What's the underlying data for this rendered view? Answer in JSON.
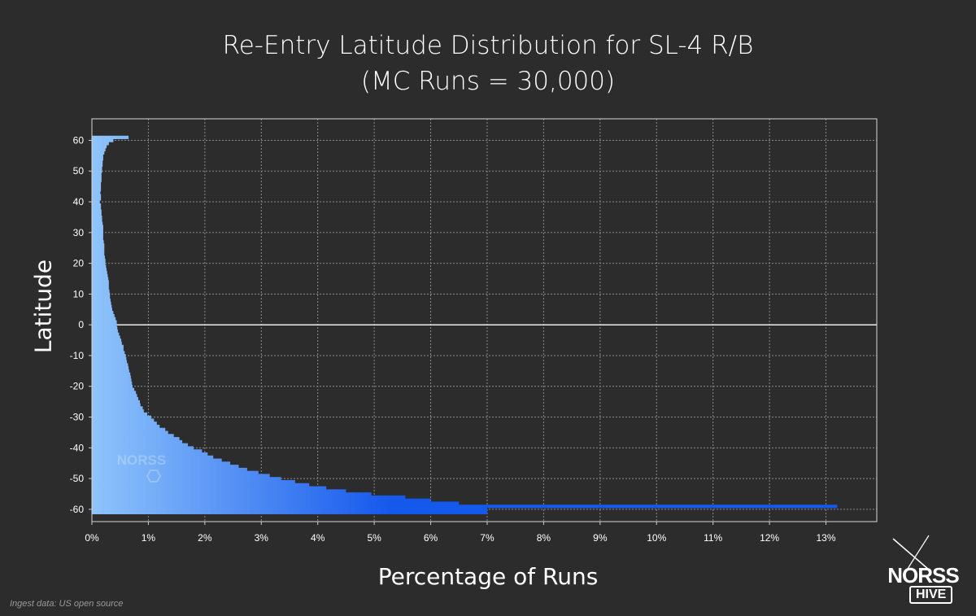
{
  "header": {
    "title_line1": "Re-Entry Latitude Distribution for SL-4 R/B",
    "title_line2": "(MC Runs = 30,000)"
  },
  "axes": {
    "xlabel": "Percentage of Runs",
    "ylabel": "Latitude"
  },
  "footer": {
    "source_note": "Ingest data: US open source"
  },
  "logo": {
    "name": "NORSS",
    "sub": "HIVE",
    "watermark_text": "NORSS"
  },
  "colors": {
    "bar_light": "#8fc4fb",
    "bar_dark": "#1558ec",
    "plot_bg": "#2d2c2d",
    "grid": "#8a8a8a",
    "zero_line": "#ffffff"
  },
  "chart_data": {
    "type": "bar",
    "orientation": "horizontal",
    "xlabel": "Percentage of Runs",
    "ylabel": "Latitude",
    "xlim": [
      0,
      13.9
    ],
    "ylim": [
      -64,
      67
    ],
    "x_ticks": [
      "0%",
      "1%",
      "2%",
      "3%",
      "4%",
      "5%",
      "6%",
      "7%",
      "8%",
      "9%",
      "10%",
      "11%",
      "12%",
      "13%"
    ],
    "y_ticks": [
      60,
      50,
      40,
      30,
      20,
      10,
      0,
      -10,
      -20,
      -30,
      -40,
      -50,
      -60
    ],
    "grid": true,
    "bin_width_deg": 1,
    "latitude_bins": [
      61,
      60,
      59,
      58,
      57,
      56,
      55,
      54,
      53,
      52,
      51,
      50,
      49,
      48,
      47,
      46,
      45,
      44,
      43,
      42,
      41,
      40,
      39,
      38,
      37,
      36,
      35,
      34,
      33,
      32,
      31,
      30,
      29,
      28,
      27,
      26,
      25,
      24,
      23,
      22,
      21,
      20,
      19,
      18,
      17,
      16,
      15,
      14,
      13,
      12,
      11,
      10,
      9,
      8,
      7,
      6,
      5,
      4,
      3,
      2,
      1,
      0,
      -1,
      -2,
      -3,
      -4,
      -5,
      -6,
      -7,
      -8,
      -9,
      -10,
      -11,
      -12,
      -13,
      -14,
      -15,
      -16,
      -17,
      -18,
      -19,
      -20,
      -21,
      -22,
      -23,
      -24,
      -25,
      -26,
      -27,
      -28,
      -29,
      -30,
      -31,
      -32,
      -33,
      -34,
      -35,
      -36,
      -37,
      -38,
      -39,
      -40,
      -41,
      -42,
      -43,
      -44,
      -45,
      -46,
      -47,
      -48,
      -49,
      -50,
      -51,
      -52,
      -53,
      -54,
      -55,
      -56,
      -57,
      -58,
      -59,
      -60,
      -61
    ],
    "percent_values": [
      0.65,
      0.38,
      0.3,
      0.26,
      0.24,
      0.22,
      0.2,
      0.2,
      0.19,
      0.19,
      0.18,
      0.18,
      0.17,
      0.17,
      0.17,
      0.16,
      0.16,
      0.16,
      0.15,
      0.16,
      0.16,
      0.14,
      0.16,
      0.16,
      0.17,
      0.17,
      0.18,
      0.18,
      0.19,
      0.2,
      0.2,
      0.2,
      0.2,
      0.2,
      0.21,
      0.22,
      0.22,
      0.22,
      0.22,
      0.23,
      0.24,
      0.24,
      0.25,
      0.26,
      0.27,
      0.28,
      0.29,
      0.3,
      0.3,
      0.3,
      0.31,
      0.32,
      0.32,
      0.33,
      0.34,
      0.35,
      0.36,
      0.38,
      0.4,
      0.42,
      0.44,
      0.44,
      0.45,
      0.46,
      0.48,
      0.5,
      0.52,
      0.53,
      0.56,
      0.56,
      0.58,
      0.6,
      0.61,
      0.62,
      0.64,
      0.65,
      0.66,
      0.68,
      0.69,
      0.7,
      0.71,
      0.72,
      0.75,
      0.78,
      0.8,
      0.82,
      0.85,
      0.86,
      0.9,
      0.92,
      0.98,
      1.05,
      1.1,
      1.15,
      1.2,
      1.3,
      1.35,
      1.45,
      1.55,
      1.6,
      1.7,
      1.8,
      1.95,
      2.05,
      2.15,
      2.3,
      2.45,
      2.6,
      2.75,
      2.95,
      3.15,
      3.35,
      3.6,
      3.85,
      4.15,
      4.5,
      4.95,
      5.55,
      6.0,
      6.5,
      13.2,
      7.0,
      7.0
    ]
  }
}
